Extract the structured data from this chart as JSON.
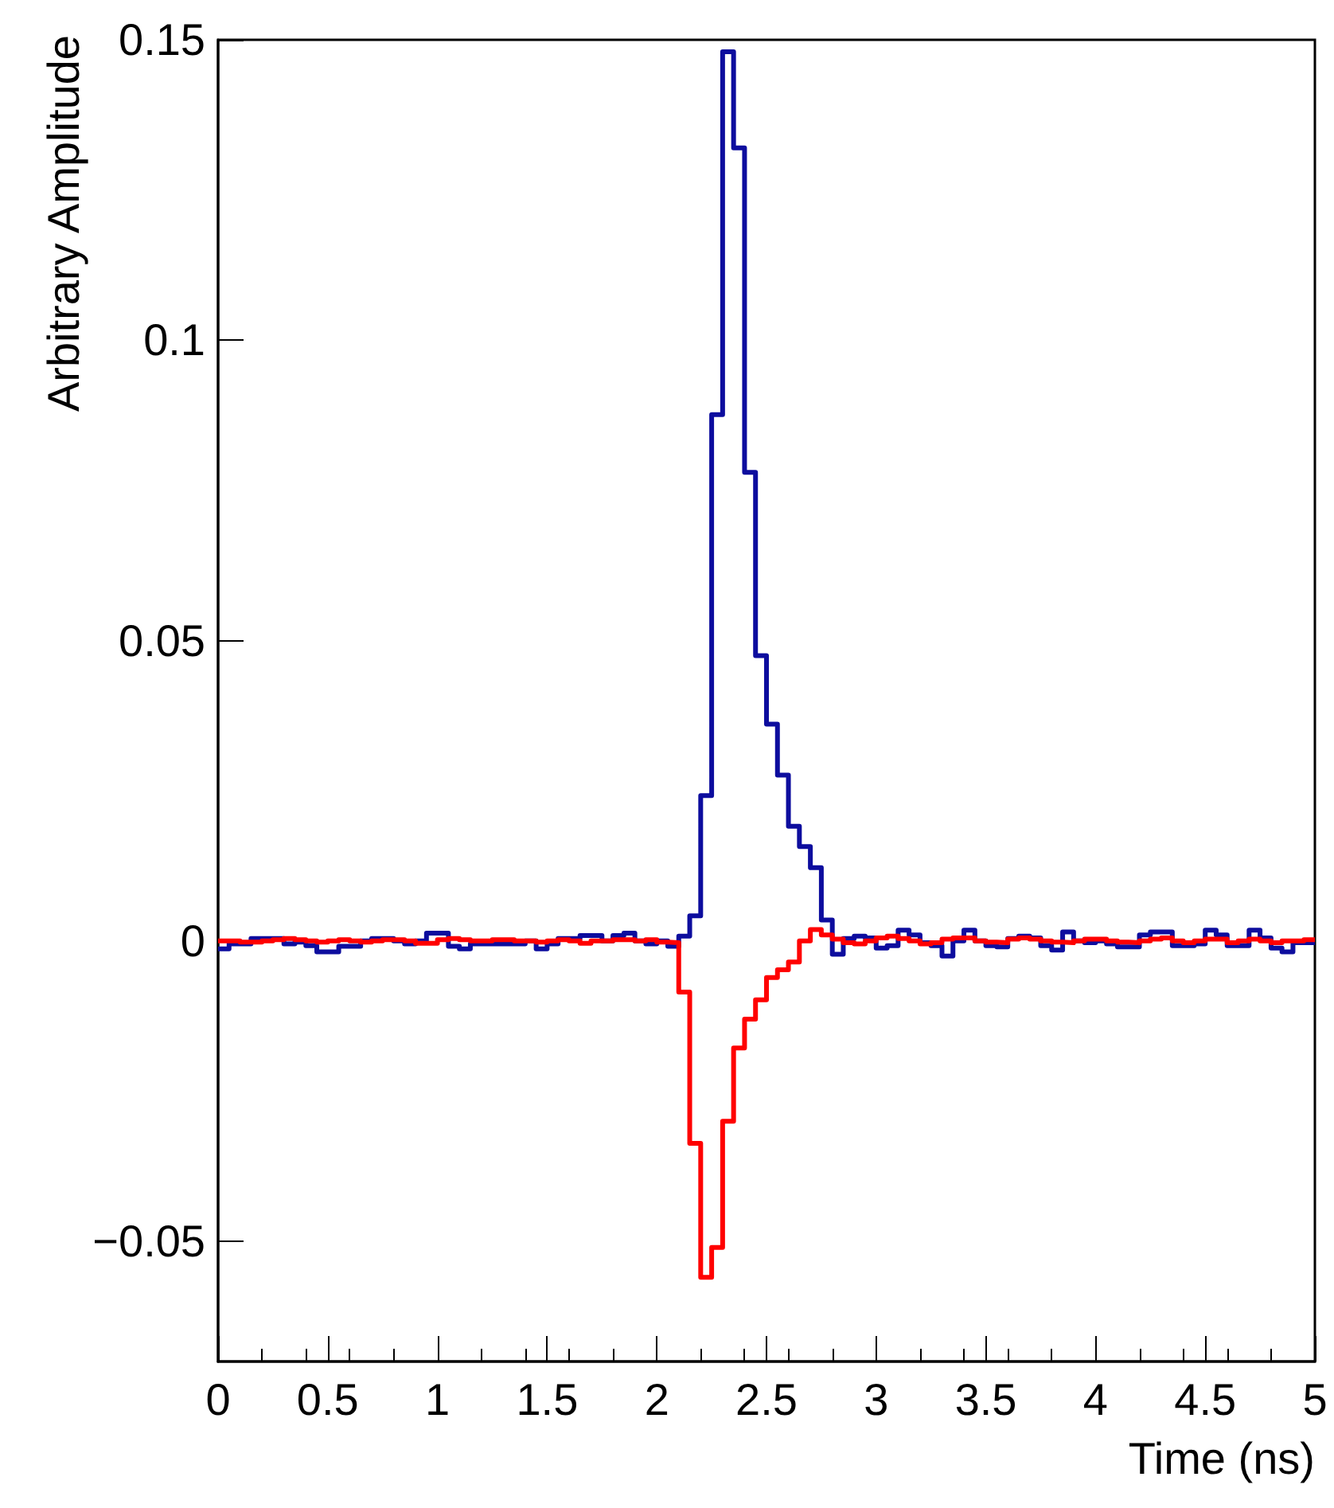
{
  "chart_data": {
    "type": "histogram",
    "xlabel": "Time (ns)",
    "ylabel": "Arbitrary Amplitude",
    "bins": [
      0,
      0.05,
      0.1,
      0.15,
      0.2,
      0.25,
      0.3,
      0.35,
      0.4,
      0.45,
      0.5,
      0.55,
      0.6,
      0.65,
      0.7,
      0.75,
      0.8,
      0.85,
      0.9,
      0.95,
      1,
      1.05,
      1.1,
      1.15,
      1.2,
      1.25,
      1.3,
      1.35,
      1.4,
      1.45,
      1.5,
      1.55,
      1.6,
      1.65,
      1.7,
      1.75,
      1.8,
      1.85,
      1.9,
      1.95,
      2,
      2.05,
      2.1,
      2.15,
      2.2,
      2.25,
      2.3,
      2.35,
      2.4,
      2.45,
      2.5,
      2.55,
      2.6,
      2.65,
      2.7,
      2.75,
      2.8,
      2.85,
      2.9,
      2.95,
      3,
      3.05,
      3.1,
      3.15,
      3.2,
      3.25,
      3.3,
      3.35,
      3.4,
      3.45,
      3.5,
      3.55,
      3.6,
      3.65,
      3.7,
      3.75,
      3.8,
      3.85,
      3.9,
      3.95,
      4,
      4.05,
      4.1,
      4.15,
      4.2,
      4.25,
      4.3,
      4.35,
      4.4,
      4.45,
      4.5,
      4.55,
      4.6,
      4.65,
      4.7,
      4.75,
      4.8,
      4.85,
      4.9,
      4.95,
      5
    ],
    "series": [
      {
        "color": "#0d0d9e",
        "values": [
          -0.0013,
          -0.0005,
          -0.0005,
          0.0004,
          0.0004,
          0.0004,
          -0.0005,
          -0.0002,
          -0.0008,
          -0.0018,
          -0.0018,
          -0.0009,
          -0.0009,
          0.0,
          0.0004,
          0.0004,
          0.0,
          -0.0005,
          0.0,
          0.0013,
          0.0013,
          -0.0009,
          -0.0013,
          -0.0005,
          -0.0005,
          -0.0005,
          -0.0005,
          -0.0005,
          0.0,
          -0.0013,
          -0.0005,
          0.0004,
          0.0004,
          0.0009,
          0.0009,
          0.0,
          0.0009,
          0.0013,
          0.0,
          -0.0005,
          0.0,
          -0.0009,
          0.0008,
          0.0042,
          0.0242,
          0.0876,
          0.148,
          0.132,
          0.078,
          0.0475,
          0.0361,
          0.0276,
          0.0191,
          0.0157,
          0.0122,
          0.0035,
          -0.0022,
          0.0004,
          0.0008,
          0.0005,
          -0.0012,
          -0.0008,
          0.0018,
          0.001,
          -0.0003,
          -0.0008,
          -0.0025,
          0.0,
          0.0018,
          0.0,
          -0.0008,
          -0.001,
          0.0004,
          0.0008,
          0.0005,
          -0.0008,
          -0.0015,
          0.0015,
          0.0,
          -0.0003,
          0.0,
          -0.0005,
          -0.001,
          -0.001,
          0.001,
          0.0015,
          0.0015,
          -0.0008,
          -0.0008,
          -0.0005,
          0.0018,
          0.001,
          -0.0008,
          -0.0008,
          0.0018,
          0.0005,
          -0.0012,
          -0.0018,
          -0.0003,
          -0.0003
        ]
      },
      {
        "color": "#ff0000",
        "values": [
          0.0,
          0.0,
          -0.0002,
          -0.0002,
          0.0,
          0.0002,
          0.0004,
          0.0002,
          0.0,
          -0.0002,
          0.0,
          0.0002,
          0.0,
          -0.0002,
          0.0,
          0.0002,
          0.0002,
          0.0,
          -0.0004,
          -0.0004,
          0.0002,
          0.0004,
          0.0002,
          0.0,
          0.0,
          0.0002,
          0.0002,
          0.0,
          0.0,
          -0.0002,
          0.0,
          0.0002,
          0.0,
          -0.0004,
          0.0,
          0.0,
          0.0002,
          0.0002,
          0.0,
          0.0002,
          -0.0002,
          -0.0003,
          -0.0085,
          -0.0337,
          -0.056,
          -0.051,
          -0.03,
          -0.0178,
          -0.013,
          -0.0098,
          -0.0061,
          -0.0048,
          -0.0035,
          0.0,
          0.0019,
          0.001,
          0.0003,
          -0.0003,
          -0.0005,
          0.0,
          0.0005,
          0.0008,
          0.0004,
          0.0,
          -0.0005,
          -0.0003,
          0.0003,
          0.0005,
          0.0005,
          0.0,
          -0.0002,
          -0.0003,
          0.0003,
          0.0005,
          0.0003,
          0.0,
          -0.0002,
          -0.0003,
          0.0,
          0.0003,
          0.0003,
          0.0,
          -0.0002,
          -0.0003,
          0.0,
          0.0003,
          0.0005,
          0.0,
          -0.0003,
          0.0,
          0.0003,
          0.0003,
          -0.0003,
          0.0,
          0.0003,
          0.0,
          -0.0003,
          0.0,
          0.0,
          0.0002
        ]
      }
    ],
    "xlim": [
      0,
      5
    ],
    "xticks": [
      0,
      0.5,
      1,
      1.5,
      2,
      2.5,
      3,
      3.5,
      4,
      4.5,
      5
    ],
    "ylim": [
      -0.07,
      0.15
    ],
    "yticks": [
      {
        "value": -0.05,
        "label": "−0.05"
      },
      0,
      0.05,
      0.1,
      0.15
    ]
  }
}
